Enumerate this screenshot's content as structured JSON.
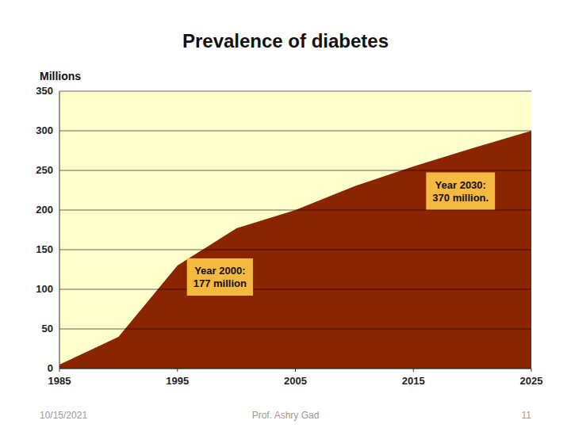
{
  "chart_data": {
    "type": "area",
    "title": "Prevalence of diabetes",
    "y_label": "Millions",
    "x": [
      1985,
      1990,
      1995,
      2000,
      2005,
      2010,
      2015,
      2020,
      2025
    ],
    "series": [
      {
        "color": "#8B2500",
        "values": [
          5,
          40,
          130,
          177,
          200,
          230,
          255,
          278,
          300
        ]
      },
      {
        "color": "#FFFFCC",
        "values": [
          350,
          350,
          350,
          350,
          350,
          350,
          350,
          350,
          350
        ]
      }
    ],
    "xlim": [
      1985,
      2025
    ],
    "ylim": [
      0,
      350
    ],
    "xticks": [
      1985,
      1995,
      2005,
      2015,
      2025
    ],
    "yticks": [
      0,
      50,
      100,
      150,
      200,
      250,
      300,
      350
    ],
    "grid": true,
    "annotations": [
      "Year 2000:\n177 million",
      "Year 2030:\n370 million."
    ],
    "footer": [
      "10/15/2021",
      "Prof. Ashry Gad",
      "11"
    ]
  }
}
